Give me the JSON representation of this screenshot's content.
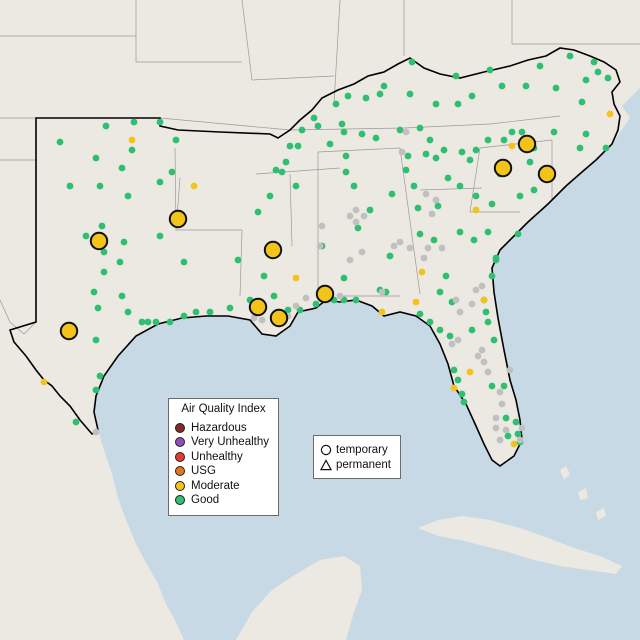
{
  "legend": {
    "title": "Air Quality Index",
    "categories": [
      {
        "label": "Hazardous",
        "color": "#7e2a2a"
      },
      {
        "label": "Very Unhealthy",
        "color": "#8f4fb8"
      },
      {
        "label": "Unhealthy",
        "color": "#e03c31"
      },
      {
        "label": "USG",
        "color": "#e8741c"
      },
      {
        "label": "Moderate",
        "color": "#f2c318"
      },
      {
        "label": "Good",
        "color": "#2fbf71"
      }
    ]
  },
  "site_type_legend": {
    "temporary": "temporary",
    "permanent": "permanent"
  },
  "colors": {
    "water": "#c8d9e6",
    "land": "#ece8e2",
    "boundary": "#9a9a9a",
    "region_outline": "#000000",
    "no_data": "#c0c0c0"
  }
}
